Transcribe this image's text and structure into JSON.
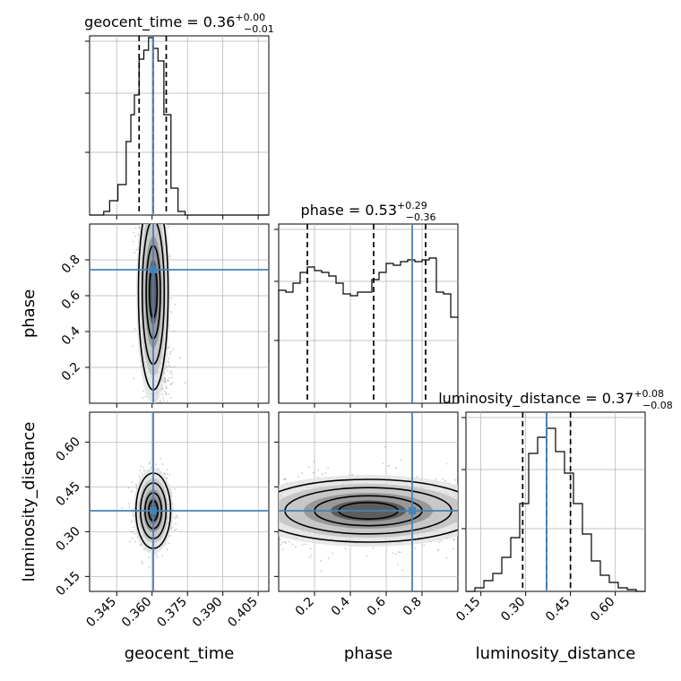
{
  "colors": {
    "truth": "#4682b4",
    "hist": "#000000",
    "grid": "#b0b0b0",
    "scatter": "#9a9a9a"
  },
  "chart_data": {
    "type": "corner",
    "parameters": [
      "geocent_time",
      "phase",
      "luminosity_distance"
    ],
    "truths": {
      "geocent_time": 0.3605,
      "phase": 0.745,
      "luminosity_distance": 0.37
    },
    "titles": {
      "geocent_time": {
        "name": "geocent_time",
        "median": "0.36",
        "plus": "+0.00",
        "minus": "−0.01"
      },
      "phase": {
        "name": "phase",
        "median": "0.53",
        "plus": "+0.29",
        "minus": "−0.36"
      },
      "luminosity_distance": {
        "name": "luminosity_distance",
        "median": "0.37",
        "plus": "+0.08",
        "minus": "−0.08"
      }
    },
    "axis_labels": {
      "geocent_time": "geocent_time",
      "phase": "phase",
      "luminosity_distance": "luminosity_distance"
    },
    "ranges": {
      "geocent_time": [
        0.3335,
        0.4095
      ],
      "phase": [
        0.0,
        1.0
      ],
      "luminosity_distance": [
        0.1,
        0.7
      ]
    },
    "ticks": {
      "geocent_time": [
        "0.345",
        "0.360",
        "0.375",
        "0.390",
        "0.405"
      ],
      "phase": [
        "0.2",
        "0.4",
        "0.6",
        "0.8"
      ],
      "luminosity_distance_y": [
        "0.15",
        "0.30",
        "0.45",
        "0.60"
      ],
      "luminosity_distance_x": [
        "0.15",
        "0.30",
        "0.45",
        "0.60"
      ]
    },
    "quantiles": {
      "geocent_time": [
        0.3545,
        0.3605,
        0.366
      ],
      "phase": [
        0.16,
        0.53,
        0.82
      ],
      "luminosity_distance": [
        0.29,
        0.37,
        0.45
      ]
    },
    "histograms": {
      "geocent_time": {
        "edges": [
          0.3335,
          0.3395,
          0.342,
          0.3455,
          0.349,
          0.351,
          0.3525,
          0.3545,
          0.3565,
          0.3585,
          0.3605,
          0.3625,
          0.365,
          0.368,
          0.371,
          0.374,
          0.3785,
          0.4095
        ],
        "counts": [
          0.0,
          0.02,
          0.08,
          0.17,
          0.41,
          0.56,
          0.67,
          0.87,
          0.92,
          0.99,
          0.93,
          0.86,
          0.56,
          0.15,
          0.02,
          0.0,
          0.0
        ]
      },
      "phase": {
        "edges": [
          0.0,
          0.04,
          0.08,
          0.12,
          0.16,
          0.2,
          0.24,
          0.28,
          0.32,
          0.36,
          0.4,
          0.44,
          0.48,
          0.52,
          0.56,
          0.6,
          0.64,
          0.68,
          0.72,
          0.76,
          0.8,
          0.84,
          0.88,
          0.92,
          0.96,
          1.0
        ],
        "counts": [
          0.63,
          0.62,
          0.67,
          0.73,
          0.76,
          0.74,
          0.73,
          0.71,
          0.67,
          0.61,
          0.6,
          0.62,
          0.62,
          0.69,
          0.73,
          0.78,
          0.77,
          0.79,
          0.8,
          0.79,
          0.8,
          0.81,
          0.62,
          0.61,
          0.48
        ]
      },
      "luminosity_distance": {
        "edges": [
          0.1,
          0.13,
          0.16,
          0.19,
          0.22,
          0.25,
          0.28,
          0.31,
          0.34,
          0.37,
          0.4,
          0.43,
          0.46,
          0.49,
          0.52,
          0.55,
          0.58,
          0.61,
          0.64,
          0.67,
          0.7
        ],
        "counts": [
          0.0,
          0.02,
          0.06,
          0.1,
          0.19,
          0.3,
          0.49,
          0.77,
          0.86,
          0.91,
          0.78,
          0.66,
          0.49,
          0.32,
          0.17,
          0.09,
          0.05,
          0.02,
          0.01,
          0.0
        ]
      }
    },
    "pairs": [
      {
        "x": "geocent_time",
        "y": "phase",
        "posterior_center": [
          0.3605,
          0.62
        ],
        "spread": [
          0.003,
          0.26
        ]
      },
      {
        "x": "geocent_time",
        "y": "luminosity_distance",
        "posterior_center": [
          0.3605,
          0.37
        ],
        "spread": [
          0.0035,
          0.06
        ]
      },
      {
        "x": "phase",
        "y": "luminosity_distance",
        "posterior_center": [
          0.5,
          0.37
        ],
        "spread": [
          0.3,
          0.05
        ]
      }
    ]
  }
}
